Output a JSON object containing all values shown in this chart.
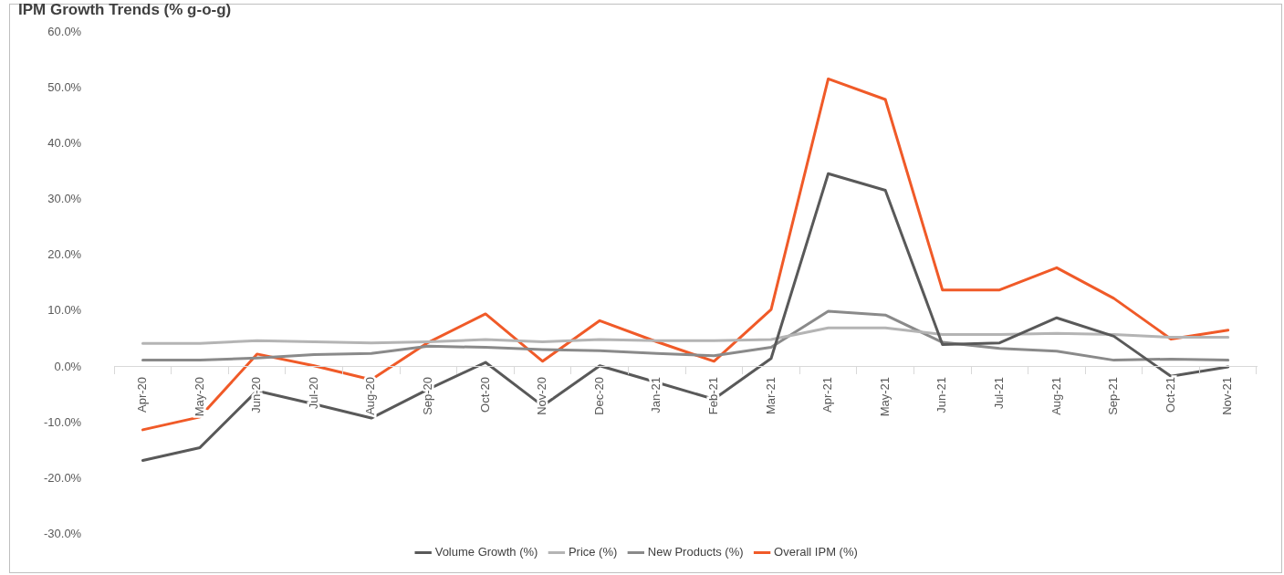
{
  "chart_data": {
    "type": "line",
    "title": "IPM Growth Trends (% g-o-g)",
    "categories": [
      "Apr-20",
      "May-20",
      "Jun-20",
      "Jul-20",
      "Aug-20",
      "Sep-20",
      "Oct-20",
      "Nov-20",
      "Dec-20",
      "Jan-21",
      "Feb-21",
      "Mar-21",
      "Apr-21",
      "May-21",
      "Jun-21",
      "Jul-21",
      "Aug-21",
      "Sep-21",
      "Oct-21",
      "Nov-21"
    ],
    "series": [
      {
        "name": "Volume Growth (%)",
        "color": "#595959",
        "values": [
          -16.8,
          -14.5,
          -4.3,
          -6.7,
          -9.2,
          -4,
          0.8,
          -7,
          0.2,
          -2.8,
          -5.8,
          1.5,
          34.7,
          31.7,
          4,
          4.3,
          8.8,
          5.5,
          -1.7,
          0
        ]
      },
      {
        "name": "Price (%)",
        "color": "#b4b4b4",
        "values": [
          4.2,
          4.2,
          4.7,
          4.5,
          4.3,
          4.5,
          4.9,
          4.5,
          4.9,
          4.7,
          4.7,
          4.9,
          7,
          7,
          5.8,
          5.8,
          6,
          5.8,
          5.3,
          5.3
        ]
      },
      {
        "name": "New Products (%)",
        "color": "#8a8a8a",
        "values": [
          1.2,
          1.2,
          1.6,
          2.2,
          2.4,
          3.7,
          3.5,
          3.1,
          2.9,
          2.4,
          2,
          3.5,
          10,
          9.3,
          4.4,
          3.3,
          2.8,
          1.2,
          1.4,
          1.2
        ]
      },
      {
        "name": "Overall IPM (%)",
        "color": "#f05a28",
        "values": [
          -11.3,
          -9,
          2.3,
          0.2,
          -2.3,
          4.4,
          9.5,
          1,
          8.3,
          4.5,
          1,
          10.3,
          51.7,
          48,
          13.8,
          13.8,
          17.8,
          12.3,
          5,
          6.6
        ]
      }
    ],
    "ylim": [
      -30,
      60
    ],
    "yticks": [
      {
        "value": -30,
        "label": "-30.0%"
      },
      {
        "value": -20,
        "label": "-20.0%"
      },
      {
        "value": -10,
        "label": "-10.0%"
      },
      {
        "value": 0,
        "label": "0.0%"
      },
      {
        "value": 10,
        "label": "10.0%"
      },
      {
        "value": 20,
        "label": "20.0%"
      },
      {
        "value": 30,
        "label": "30.0%"
      },
      {
        "value": 40,
        "label": "40.0%"
      },
      {
        "value": 50,
        "label": "50.0%"
      },
      {
        "value": 60,
        "label": "60.0%"
      }
    ],
    "grid": false,
    "legend": "bottom",
    "marker": "none",
    "line_style": "solid"
  }
}
